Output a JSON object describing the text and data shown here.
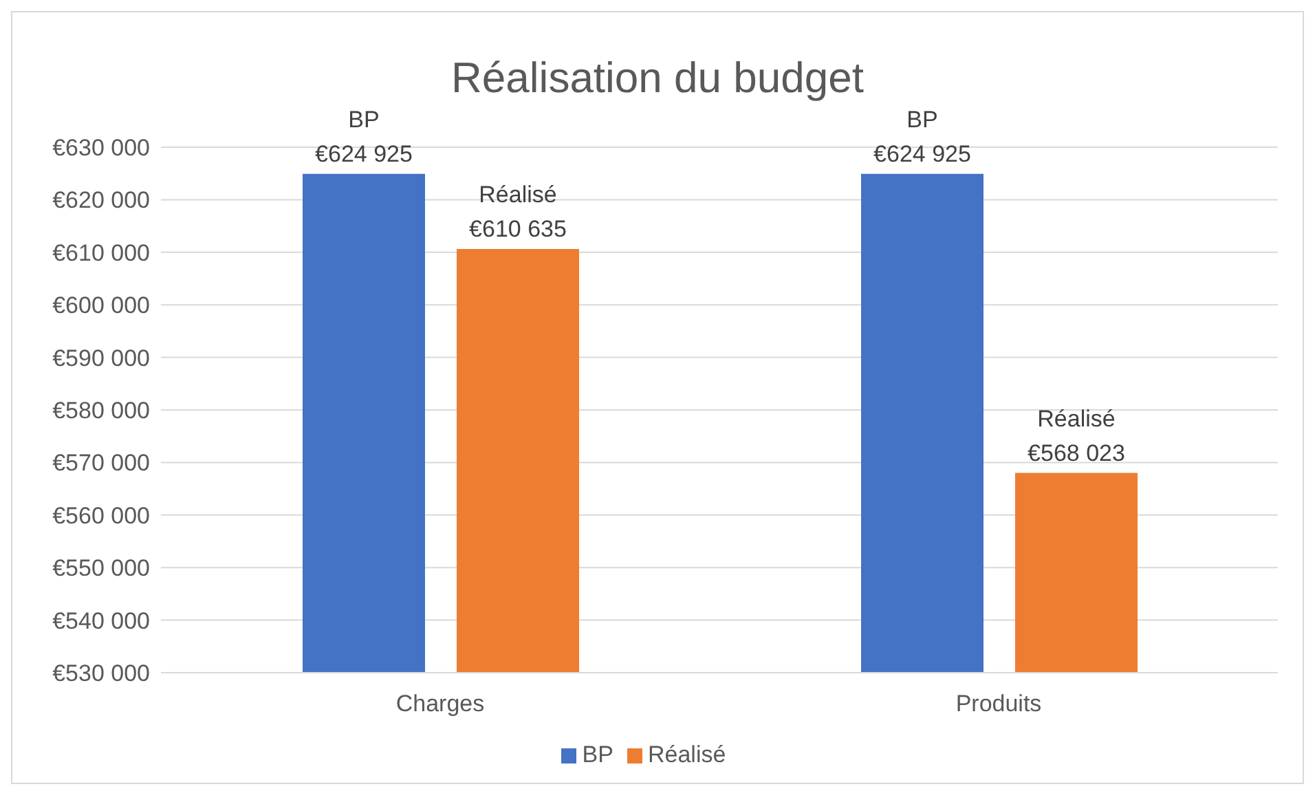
{
  "chart_data": {
    "type": "bar",
    "title": "Réalisation du budget",
    "categories": [
      "Charges",
      "Produits"
    ],
    "series": [
      {
        "name": "BP",
        "color": "#4472c4",
        "values": [
          624925,
          624925
        ],
        "value_labels": [
          "€624 925",
          "€624 925"
        ]
      },
      {
        "name": "Réalisé",
        "color": "#ed7d31",
        "values": [
          610635,
          568023
        ],
        "value_labels": [
          "€610 635",
          "€568 023"
        ]
      }
    ],
    "ylim": [
      530000,
      630000
    ],
    "yticks": [
      {
        "value": 530000,
        "label": "€530 000"
      },
      {
        "value": 540000,
        "label": "€540 000"
      },
      {
        "value": 550000,
        "label": "€550 000"
      },
      {
        "value": 560000,
        "label": "€560 000"
      },
      {
        "value": 570000,
        "label": "€570 000"
      },
      {
        "value": 580000,
        "label": "€580 000"
      },
      {
        "value": 590000,
        "label": "€590 000"
      },
      {
        "value": 600000,
        "label": "€600 000"
      },
      {
        "value": 610000,
        "label": "€610 000"
      },
      {
        "value": 620000,
        "label": "€620 000"
      },
      {
        "value": 630000,
        "label": "€630 000"
      }
    ],
    "grid": "y",
    "legend": "bottom"
  }
}
